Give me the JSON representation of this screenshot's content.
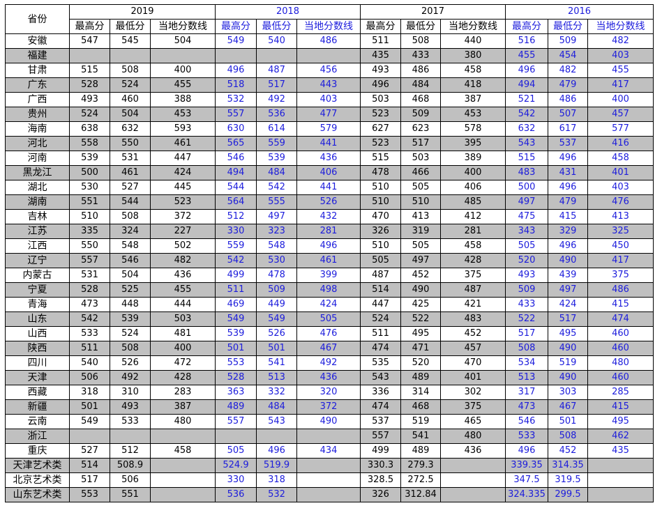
{
  "table": {
    "province_header": "省份",
    "years": [
      {
        "year": "2019",
        "blue": false
      },
      {
        "year": "2018",
        "blue": true
      },
      {
        "year": "2017",
        "blue": false
      },
      {
        "year": "2016",
        "blue": true
      }
    ],
    "sub_headers": [
      "最高分",
      "最低分",
      "当地分数线"
    ],
    "colors": {
      "blue_text": "#1c1cdc",
      "gray_row": "#c0c0c0",
      "border": "#000000"
    },
    "rows": [
      {
        "province": "安徽",
        "gray": false,
        "cells": [
          "547",
          "545",
          "504",
          "549",
          "540",
          "486",
          "511",
          "508",
          "440",
          "516",
          "509",
          "482"
        ]
      },
      {
        "province": "福建",
        "gray": true,
        "cells": [
          "",
          "",
          "",
          "",
          "",
          "",
          "435",
          "433",
          "380",
          "455",
          "454",
          "403"
        ]
      },
      {
        "province": "甘肃",
        "gray": false,
        "cells": [
          "515",
          "508",
          "400",
          "496",
          "487",
          "456",
          "493",
          "486",
          "458",
          "496",
          "482",
          "455"
        ]
      },
      {
        "province": "广东",
        "gray": true,
        "cells": [
          "528",
          "524",
          "455",
          "518",
          "517",
          "443",
          "496",
          "484",
          "418",
          "494",
          "479",
          "417"
        ]
      },
      {
        "province": "广西",
        "gray": false,
        "cells": [
          "493",
          "460",
          "388",
          "532",
          "492",
          "403",
          "503",
          "468",
          "387",
          "521",
          "486",
          "400"
        ]
      },
      {
        "province": "贵州",
        "gray": true,
        "cells": [
          "524",
          "504",
          "453",
          "557",
          "536",
          "477",
          "523",
          "509",
          "453",
          "542",
          "507",
          "457"
        ]
      },
      {
        "province": "海南",
        "gray": false,
        "cells": [
          "638",
          "632",
          "593",
          "630",
          "614",
          "579",
          "627",
          "623",
          "578",
          "632",
          "617",
          "577"
        ]
      },
      {
        "province": "河北",
        "gray": true,
        "cells": [
          "558",
          "550",
          "461",
          "565",
          "559",
          "441",
          "523",
          "517",
          "395",
          "543",
          "537",
          "416"
        ]
      },
      {
        "province": "河南",
        "gray": false,
        "cells": [
          "539",
          "531",
          "447",
          "546",
          "539",
          "436",
          "515",
          "503",
          "389",
          "515",
          "496",
          "458"
        ]
      },
      {
        "province": "黑龙江",
        "gray": true,
        "cells": [
          "500",
          "461",
          "424",
          "494",
          "484",
          "406",
          "478",
          "466",
          "400",
          "483",
          "431",
          "401"
        ]
      },
      {
        "province": "湖北",
        "gray": false,
        "cells": [
          "530",
          "527",
          "445",
          "544",
          "542",
          "441",
          "510",
          "505",
          "406",
          "500",
          "496",
          "403"
        ]
      },
      {
        "province": "湖南",
        "gray": true,
        "cells": [
          "551",
          "544",
          "523",
          "564",
          "555",
          "526",
          "510",
          "510",
          "485",
          "497",
          "479",
          "476"
        ]
      },
      {
        "province": "吉林",
        "gray": false,
        "cells": [
          "510",
          "508",
          "372",
          "512",
          "497",
          "432",
          "470",
          "413",
          "412",
          "475",
          "415",
          "413"
        ]
      },
      {
        "province": "江苏",
        "gray": true,
        "cells": [
          "335",
          "324",
          "227",
          "330",
          "323",
          "281",
          "326",
          "319",
          "281",
          "343",
          "329",
          "325"
        ]
      },
      {
        "province": "江西",
        "gray": false,
        "cells": [
          "550",
          "548",
          "502",
          "559",
          "548",
          "496",
          "510",
          "505",
          "458",
          "505",
          "496",
          "450"
        ]
      },
      {
        "province": "辽宁",
        "gray": true,
        "cells": [
          "557",
          "546",
          "482",
          "542",
          "530",
          "461",
          "505",
          "497",
          "428",
          "520",
          "490",
          "417"
        ]
      },
      {
        "province": "内蒙古",
        "gray": false,
        "cells": [
          "531",
          "504",
          "436",
          "499",
          "478",
          "399",
          "487",
          "452",
          "375",
          "493",
          "439",
          "375"
        ]
      },
      {
        "province": "宁夏",
        "gray": true,
        "cells": [
          "528",
          "525",
          "455",
          "511",
          "509",
          "498",
          "514",
          "490",
          "487",
          "509",
          "497",
          "486"
        ]
      },
      {
        "province": "青海",
        "gray": false,
        "cells": [
          "473",
          "448",
          "444",
          "469",
          "449",
          "424",
          "447",
          "425",
          "421",
          "433",
          "424",
          "415"
        ]
      },
      {
        "province": "山东",
        "gray": true,
        "cells": [
          "542",
          "539",
          "503",
          "549",
          "549",
          "505",
          "524",
          "522",
          "483",
          "522",
          "517",
          "474"
        ]
      },
      {
        "province": "山西",
        "gray": false,
        "cells": [
          "533",
          "524",
          "481",
          "539",
          "526",
          "476",
          "511",
          "495",
          "452",
          "517",
          "495",
          "460"
        ]
      },
      {
        "province": "陕西",
        "gray": true,
        "cells": [
          "511",
          "508",
          "400",
          "501",
          "501",
          "467",
          "474",
          "471",
          "457",
          "508",
          "490",
          "460"
        ]
      },
      {
        "province": "四川",
        "gray": false,
        "cells": [
          "540",
          "526",
          "472",
          "553",
          "541",
          "492",
          "535",
          "520",
          "470",
          "534",
          "519",
          "480"
        ]
      },
      {
        "province": "天津",
        "gray": true,
        "cells": [
          "506",
          "492",
          "428",
          "528",
          "513",
          "436",
          "543",
          "489",
          "401",
          "513",
          "490",
          "460"
        ]
      },
      {
        "province": "西藏",
        "gray": false,
        "cells": [
          "318",
          "310",
          "283",
          "363",
          "332",
          "320",
          "336",
          "314",
          "302",
          "317",
          "303",
          "285"
        ]
      },
      {
        "province": "新疆",
        "gray": true,
        "cells": [
          "501",
          "493",
          "387",
          "489",
          "484",
          "372",
          "474",
          "468",
          "375",
          "473",
          "467",
          "415"
        ]
      },
      {
        "province": "云南",
        "gray": false,
        "cells": [
          "549",
          "533",
          "480",
          "557",
          "543",
          "490",
          "537",
          "519",
          "465",
          "546",
          "501",
          "495"
        ]
      },
      {
        "province": "浙江",
        "gray": true,
        "cells": [
          "",
          "",
          "",
          "",
          "",
          "",
          "557",
          "541",
          "480",
          "533",
          "508",
          "462"
        ]
      },
      {
        "province": "重庆",
        "gray": false,
        "cells": [
          "527",
          "512",
          "458",
          "505",
          "496",
          "434",
          "499",
          "489",
          "436",
          "496",
          "452",
          "435"
        ]
      },
      {
        "province": "天津艺术类",
        "gray": true,
        "cells": [
          "514",
          "508.9",
          "",
          "524.9",
          "519.9",
          "",
          "330.3",
          "279.3",
          "",
          "339.35",
          "314.35",
          ""
        ]
      },
      {
        "province": "北京艺术类",
        "gray": false,
        "cells": [
          "517",
          "506",
          "",
          "330",
          "318",
          "",
          "328.5",
          "272.5",
          "",
          "347.5",
          "319.5",
          ""
        ]
      },
      {
        "province": "山东艺术类",
        "gray": true,
        "cells": [
          "553",
          "551",
          "",
          "536",
          "532",
          "",
          "326",
          "312.84",
          "",
          "324.335",
          "299.5",
          ""
        ]
      }
    ]
  }
}
